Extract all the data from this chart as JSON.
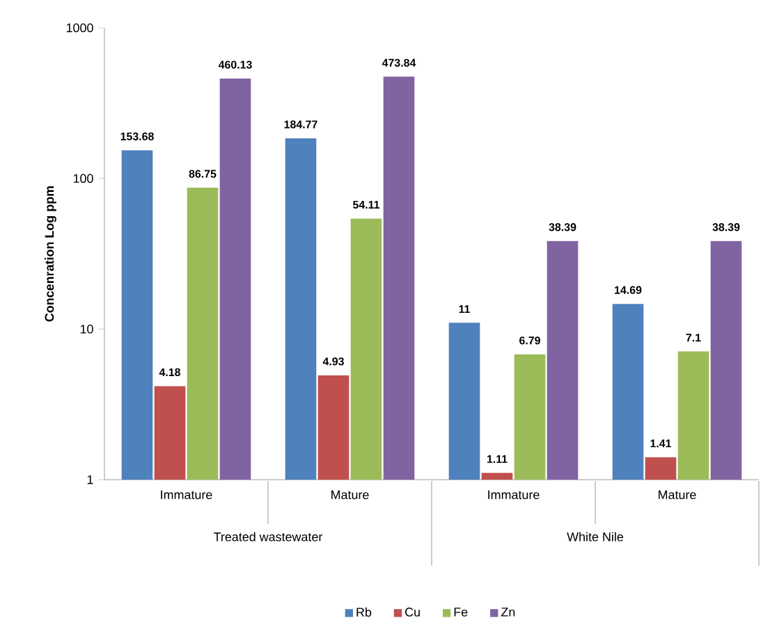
{
  "chart_data": {
    "type": "bar",
    "ylabel": "Concenration Log ppm",
    "categories": [
      "Immature",
      "Mature",
      "Immature",
      "Mature"
    ],
    "annotations": [
      "Treated wastewater",
      "White Nile"
    ],
    "series": [
      {
        "name": "Rb",
        "color": "#4f81bd",
        "values": [
          153.68,
          184.77,
          11,
          14.69
        ]
      },
      {
        "name": "Cu",
        "color": "#c0504d",
        "values": [
          4.18,
          4.93,
          1.11,
          1.41
        ]
      },
      {
        "name": "Fe",
        "color": "#9bbb59",
        "values": [
          86.75,
          54.11,
          6.79,
          7.1
        ]
      },
      {
        "name": "Zn",
        "color": "#8064a2",
        "values": [
          460.13,
          473.84,
          38.39,
          38.39
        ]
      }
    ],
    "log": "y",
    "ylim": [
      1,
      1000
    ],
    "yticks": [
      1,
      10,
      100,
      1000
    ],
    "grid": false,
    "legend": "bottom",
    "data_labels": true
  }
}
